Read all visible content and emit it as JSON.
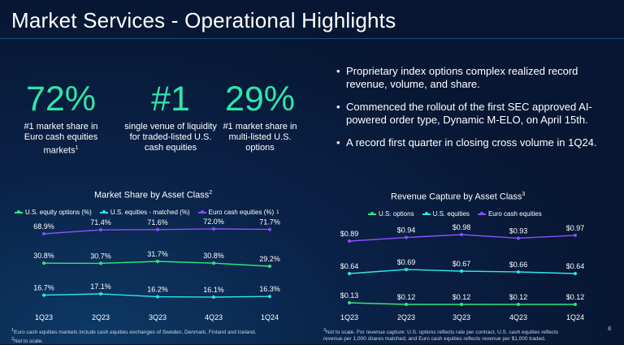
{
  "title": "Market Services - Operational Highlights",
  "stats": [
    {
      "value": "72%",
      "line1": "#1 market share in",
      "line2": "Euro cash equities",
      "line3": "markets",
      "sup": "1"
    },
    {
      "value": "#1",
      "line1": "single venue of liquidity",
      "line2": "for traded-listed U.S.",
      "line3": "cash equities",
      "sup": ""
    },
    {
      "value": "29%",
      "line1": "#1 market share in",
      "line2": "multi-listed U.S.",
      "line3": "options",
      "sup": ""
    }
  ],
  "bullets": [
    "Proprietary index options complex realized record revenue, volume, and share.",
    "Commenced the rollout of the first SEC approved AI-powered order type, Dynamic M-ELO, on April 15th.",
    "A record first quarter in closing cross volume in 1Q24."
  ],
  "colors": {
    "green": "#2fe67a",
    "cyan": "#2ee6e6",
    "purple": "#8a4fff",
    "accent": "#2fe6a8"
  },
  "chart_data": [
    {
      "type": "line",
      "title": "Market Share by Asset Class",
      "title_sup": "2",
      "categories": [
        "1Q23",
        "2Q23",
        "3Q23",
        "4Q23",
        "1Q24"
      ],
      "series": [
        {
          "name": "U.S. equity options (%)",
          "color": "#2fe67a",
          "values": [
            30.8,
            30.7,
            31.7,
            30.8,
            29.2
          ],
          "labels": [
            "30.8%",
            "30.7%",
            "31.7%",
            "30.8%",
            "29.2%"
          ]
        },
        {
          "name": "U.S. equities - matched (%)",
          "color": "#2ee6e6",
          "values": [
            16.7,
            17.1,
            16.2,
            16.1,
            16.3
          ],
          "labels": [
            "16.7%",
            "17.1%",
            "16.2%",
            "16.1%",
            "16.3%"
          ]
        },
        {
          "name": "Euro cash equities (%)",
          "color": "#8a4fff",
          "values": [
            68.9,
            71.4,
            71.6,
            72.0,
            71.7
          ],
          "labels": [
            "68.9%",
            "71.4%",
            "71.6%",
            "72.0%",
            "71.7%"
          ],
          "sup": "1"
        }
      ]
    },
    {
      "type": "line",
      "title": "Revenue Capture by Asset Class",
      "title_sup": "3",
      "categories": [
        "1Q23",
        "2Q23",
        "3Q23",
        "4Q23",
        "1Q24"
      ],
      "series": [
        {
          "name": "U.S. options",
          "color": "#2fe67a",
          "values": [
            0.13,
            0.12,
            0.12,
            0.12,
            0.12
          ],
          "labels": [
            "$0.13",
            "$0.12",
            "$0.12",
            "$0.12",
            "$0.12"
          ]
        },
        {
          "name": "U.S. equities",
          "color": "#2ee6e6",
          "values": [
            0.64,
            0.69,
            0.67,
            0.66,
            0.64
          ],
          "labels": [
            "$0.64",
            "$0.69",
            "$0.67",
            "$0.66",
            "$0.64"
          ]
        },
        {
          "name": "Euro cash equities",
          "color": "#8a4fff",
          "values": [
            0.89,
            0.94,
            0.98,
            0.93,
            0.97
          ],
          "labels": [
            "$0.89",
            "$0.94",
            "$0.98",
            "$0.93",
            "$0.97"
          ]
        }
      ]
    }
  ],
  "footnotes": {
    "left1_sup": "1",
    "left1": "Euro cash equities markets include cash equities exchanges of Sweden, Denmark, Finland and Iceland.",
    "left2_sup": "2",
    "left2": "Not to scale.",
    "right1_sup": "3",
    "right1": "Not to scale. For revenue capture: U.S. options reflects rate per contract, U.S. cash equities reflects",
    "right2": "revenue per 1,000 shares matched, and Euro cash equities reflects revenue per $1,000 traded."
  },
  "page_number": "8"
}
